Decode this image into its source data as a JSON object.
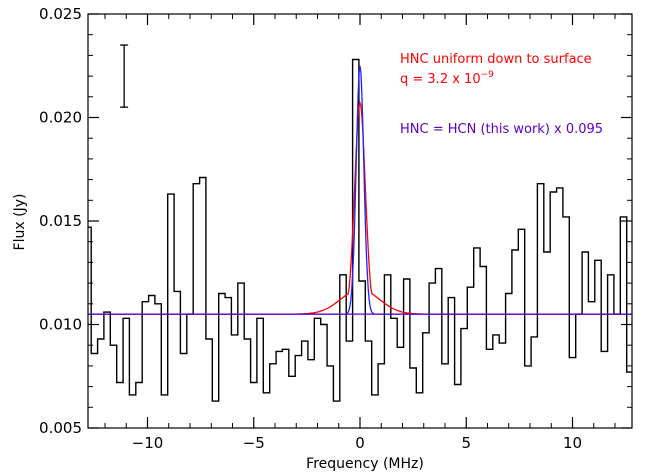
{
  "chart_data": {
    "type": "line",
    "title": "",
    "xlabel": "Frequency (MHz)",
    "ylabel": "Flux (Jy)",
    "xlim": [
      -12.8,
      12.8
    ],
    "ylim": [
      0.005,
      0.025
    ],
    "x_ticks": [
      -10,
      -5,
      0,
      5,
      10
    ],
    "x_tick_labels": [
      "−10",
      "−5",
      "0",
      "5",
      "10"
    ],
    "y_ticks": [
      0.005,
      0.01,
      0.015,
      0.02,
      0.025
    ],
    "y_tick_labels": [
      "0.005",
      "0.010",
      "0.015",
      "0.020",
      "0.025"
    ],
    "grid": false,
    "error_bar": {
      "x": -11.1,
      "y_low": 0.0205,
      "y_high": 0.0235
    },
    "annotations": [
      {
        "lines": [
          "HNC uniform down to surface",
          "q = 3.2 x 10",
          "−9"
        ],
        "color": "#ff0000"
      },
      {
        "lines": [
          "HNC = HCN (this work) x 0.095"
        ],
        "color": "#5a00c8"
      }
    ],
    "series": [
      {
        "style": "step",
        "color": "#000000",
        "x": [
          -12.8,
          -12.5,
          -12.2,
          -11.9,
          -11.6,
          -11.3,
          -11.0,
          -10.7,
          -10.4,
          -10.1,
          -9.8,
          -9.5,
          -9.2,
          -8.9,
          -8.6,
          -8.3,
          -8.0,
          -7.7,
          -7.4,
          -7.1,
          -6.8,
          -6.5,
          -6.2,
          -5.9,
          -5.6,
          -5.3,
          -5.0,
          -4.7,
          -4.4,
          -4.1,
          -3.8,
          -3.5,
          -3.2,
          -2.9,
          -2.6,
          -2.3,
          -2.0,
          -1.7,
          -1.4,
          -1.1,
          -0.8,
          -0.5,
          -0.2,
          0.1,
          0.4,
          0.7,
          1.0,
          1.3,
          1.6,
          1.9,
          2.2,
          2.5,
          2.8,
          3.1,
          3.4,
          3.7,
          4.0,
          4.3,
          4.6,
          4.9,
          5.2,
          5.5,
          5.8,
          6.1,
          6.4,
          6.7,
          7.0,
          7.3,
          7.6,
          7.9,
          8.2,
          8.5,
          8.8,
          9.1,
          9.4,
          9.7,
          10.0,
          10.3,
          10.6,
          10.9,
          11.2,
          11.5,
          11.8,
          12.1,
          12.4,
          12.7
        ],
        "y": [
          0.0147,
          0.0086,
          0.0093,
          0.0106,
          0.009,
          0.0072,
          0.0103,
          0.0066,
          0.0072,
          0.0111,
          0.0114,
          0.011,
          0.0066,
          0.0163,
          0.0116,
          0.0086,
          0.0105,
          0.0168,
          0.0171,
          0.0093,
          0.0063,
          0.0115,
          0.0113,
          0.0095,
          0.012,
          0.0093,
          0.0072,
          0.0103,
          0.0067,
          0.0081,
          0.0087,
          0.0088,
          0.0075,
          0.0085,
          0.0092,
          0.0083,
          0.0103,
          0.01,
          0.008,
          0.0063,
          0.0124,
          0.0092,
          0.0228,
          0.0121,
          0.0092,
          0.0066,
          0.0081,
          0.0124,
          0.0103,
          0.0089,
          0.0122,
          0.0079,
          0.0067,
          0.0096,
          0.012,
          0.0127,
          0.0081,
          0.0113,
          0.0071,
          0.0098,
          0.0118,
          0.0137,
          0.0128,
          0.0088,
          0.0095,
          0.0091,
          0.0115,
          0.0136,
          0.0146,
          0.008,
          0.0094,
          0.0168,
          0.0135,
          0.0164,
          0.0166,
          0.0152,
          0.0084,
          0.0105,
          0.0135,
          0.0111,
          0.0131,
          0.0087,
          0.0124,
          0.0105,
          0.0152,
          0.0077
        ]
      },
      {
        "style": "gaussian",
        "color": "#ff0000",
        "baseline": 0.0105,
        "peak": 0.0207,
        "center": 0.0,
        "sigma": 0.25,
        "wing_amplitude": 0.0012,
        "wing_sigma": 0.9
      },
      {
        "style": "gaussian",
        "color": "#2222ff",
        "baseline": 0.0105,
        "peak": 0.0225,
        "center": 0.0,
        "sigma": 0.18,
        "wing_amplitude": 0,
        "wing_sigma": 1
      },
      {
        "style": "hline",
        "color": "#5a00c8",
        "y": 0.0105
      }
    ]
  }
}
